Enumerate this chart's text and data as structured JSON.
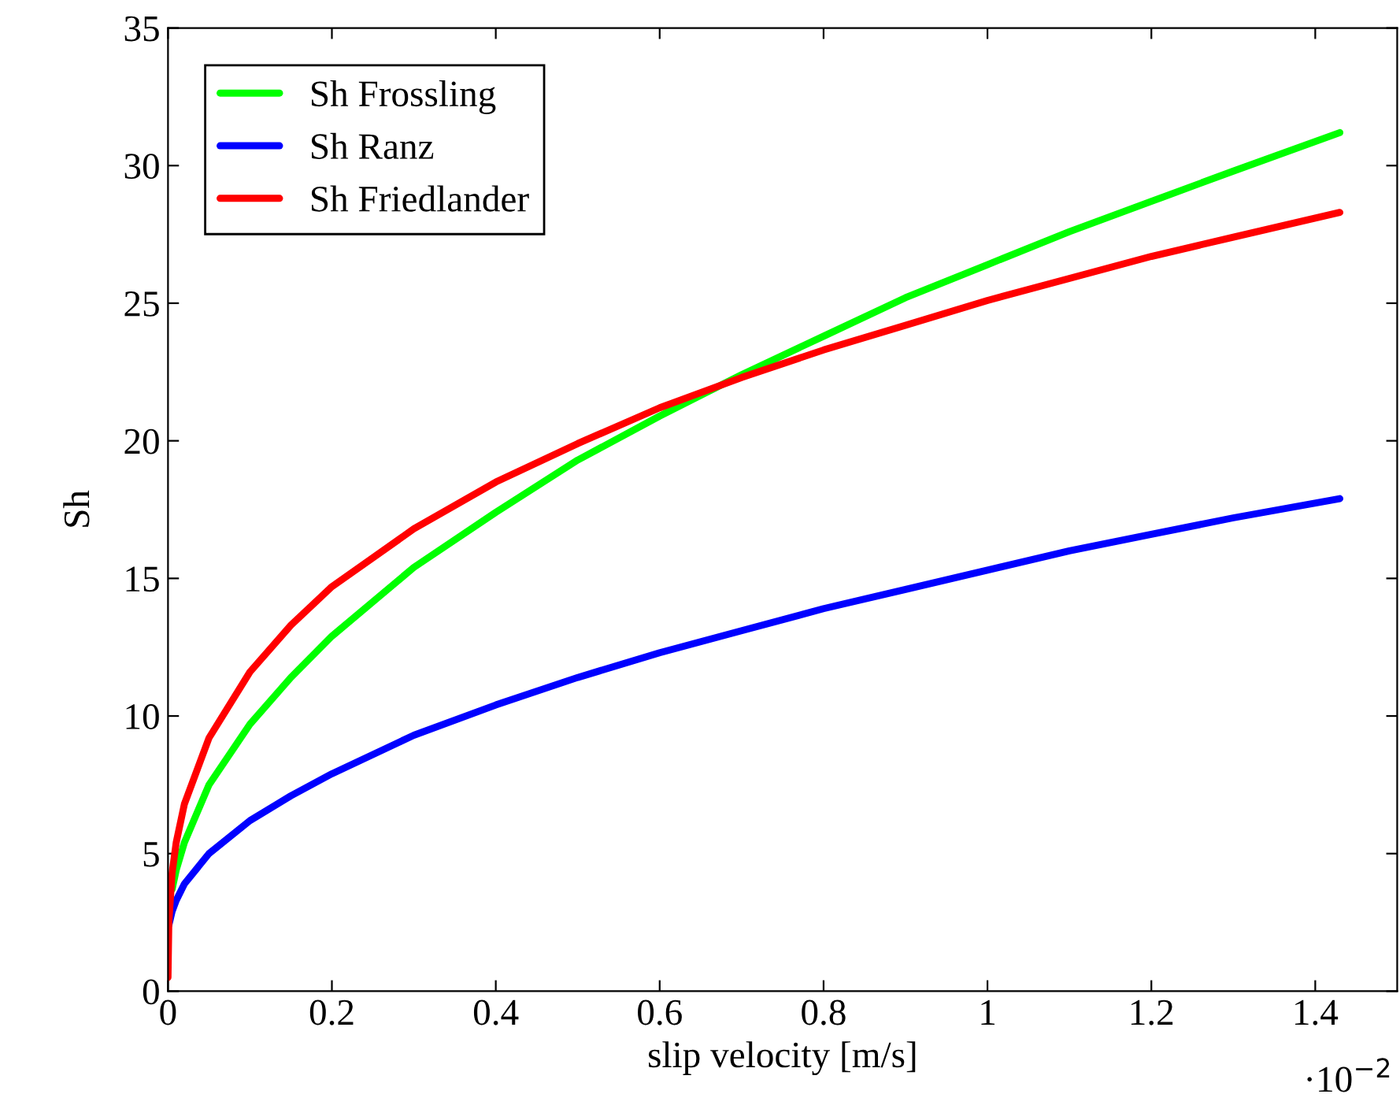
{
  "chart_data": {
    "type": "line",
    "xlabel": "slip velocity [m/s]",
    "ylabel": "Sh",
    "x": [
      0,
      0.001,
      0.005,
      0.01,
      0.02,
      0.05,
      0.1,
      0.15,
      0.2,
      0.3,
      0.4,
      0.5,
      0.6,
      0.7,
      0.8,
      0.9,
      1.0,
      1.1,
      1.2,
      1.3,
      1.43
    ],
    "series": [
      {
        "name": "Sh Frossling",
        "color": "#00ff00",
        "values": [
          null,
          null,
          3.7,
          4.4,
          5.4,
          7.5,
          9.7,
          11.4,
          12.9,
          15.4,
          17.4,
          19.3,
          20.9,
          22.4,
          23.8,
          25.2,
          26.4,
          27.6,
          28.7,
          29.8,
          31.2
        ]
      },
      {
        "name": "Sh Ranz",
        "color": "#0000ff",
        "values": [
          null,
          2.4,
          2.9,
          3.3,
          3.9,
          5.0,
          6.2,
          7.1,
          7.9,
          9.3,
          10.4,
          11.4,
          12.3,
          13.1,
          13.9,
          14.6,
          15.3,
          16.0,
          16.6,
          17.2,
          17.9
        ]
      },
      {
        "name": "Sh Friedlander",
        "color": "#ff0000",
        "values": [
          0.5,
          2.5,
          4.3,
          5.4,
          6.8,
          9.2,
          11.6,
          13.3,
          14.7,
          16.8,
          18.5,
          19.9,
          21.2,
          22.3,
          23.3,
          24.2,
          25.1,
          25.9,
          26.7,
          27.4,
          28.3
        ]
      }
    ],
    "xlim": [
      0,
      1.5
    ],
    "ylim": [
      0,
      35
    ],
    "xticks": [
      0,
      0.2,
      0.4,
      0.6,
      0.8,
      1,
      1.2,
      1.4
    ],
    "yticks": [
      0,
      5,
      10,
      15,
      20,
      25,
      30,
      35
    ],
    "annotations": [
      "·10$^{−2}$"
    ],
    "legend": "top left",
    "grid": false,
    "marker": "none",
    "line_style": "solid"
  }
}
